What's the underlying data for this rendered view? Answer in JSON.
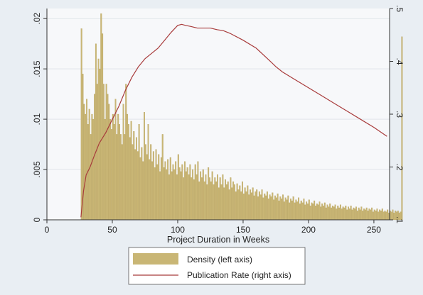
{
  "chart_data": {
    "type": "bar",
    "title": "",
    "xlabel": "Project Duration in Weeks",
    "ylabel_left": "",
    "ylabel_right": "",
    "xlim": [
      0,
      262
    ],
    "ylim_left": [
      0,
      0.021
    ],
    "ylim_right": [
      0.1,
      0.5
    ],
    "x_ticks": [
      "0",
      "50",
      "100",
      "150",
      "200",
      "250"
    ],
    "y_left_ticks": [
      "0",
      ".005",
      ".01",
      ".015",
      ".02"
    ],
    "y_right_ticks": [
      ".1",
      ".2",
      ".3",
      ".4",
      ".5"
    ],
    "grid": true,
    "legend_position": "bottom",
    "colors": {
      "background": "#e9eef3",
      "bars": "#c9b675",
      "bar_edge": "#b19b55",
      "line": "#a83b3b",
      "plot_area": "#f7f8fa"
    },
    "series": [
      {
        "name": "Density (left axis)",
        "type": "bar",
        "axis": "left",
        "x_start": 26,
        "bin_width": 1,
        "values": [
          0.019,
          0.0145,
          0.0115,
          0.0105,
          0.012,
          0.0095,
          0.011,
          0.0085,
          0.0105,
          0.01,
          0.0125,
          0.0175,
          0.0135,
          0.016,
          0.015,
          0.0205,
          0.0185,
          0.0135,
          0.01,
          0.0135,
          0.0125,
          0.0115,
          0.01,
          0.009,
          0.0105,
          0.0095,
          0.012,
          0.0085,
          0.0105,
          0.0095,
          0.0085,
          0.0075,
          0.0115,
          0.0085,
          0.0135,
          0.0105,
          0.0095,
          0.0082,
          0.0098,
          0.0075,
          0.0088,
          0.007,
          0.0082,
          0.0068,
          0.0095,
          0.0062,
          0.0072,
          0.0058,
          0.0107,
          0.0075,
          0.0065,
          0.0095,
          0.006,
          0.0075,
          0.0058,
          0.0068,
          0.0052,
          0.007,
          0.0055,
          0.0065,
          0.0048,
          0.0062,
          0.0085,
          0.0052,
          0.0058,
          0.005,
          0.006,
          0.0045,
          0.0062,
          0.0048,
          0.0055,
          0.005,
          0.0058,
          0.0045,
          0.0065,
          0.0052,
          0.0048,
          0.0055,
          0.0042,
          0.0058,
          0.0048,
          0.0052,
          0.0045,
          0.0055,
          0.0042,
          0.005,
          0.004,
          0.0055,
          0.0045,
          0.0058,
          0.0038,
          0.0048,
          0.0042,
          0.005,
          0.0038,
          0.0045,
          0.0035,
          0.0052,
          0.0042,
          0.0038,
          0.0048,
          0.0035,
          0.0042,
          0.0038,
          0.0045,
          0.0032,
          0.0042,
          0.0035,
          0.0045,
          0.0032,
          0.004,
          0.0035,
          0.0038,
          0.003,
          0.0042,
          0.0032,
          0.0038,
          0.0035,
          0.0028,
          0.0036,
          0.003,
          0.0034,
          0.0028,
          0.0038,
          0.0026,
          0.0032,
          0.0028,
          0.0034,
          0.0025,
          0.003,
          0.0027,
          0.0032,
          0.0024,
          0.0028,
          0.003,
          0.0023,
          0.0028,
          0.0025,
          0.003,
          0.0022,
          0.0026,
          0.0024,
          0.0028,
          0.0021,
          0.0025,
          0.0023,
          0.0027,
          0.002,
          0.0024,
          0.0022,
          0.0026,
          0.0019,
          0.0023,
          0.0021,
          0.0025,
          0.0018,
          0.0022,
          0.002,
          0.0024,
          0.0017,
          0.0021,
          0.0019,
          0.0023,
          0.0017,
          0.002,
          0.0018,
          0.0022,
          0.0016,
          0.0019,
          0.0017,
          0.0021,
          0.0015,
          0.0018,
          0.0016,
          0.002,
          0.0014,
          0.0017,
          0.0016,
          0.0019,
          0.0014,
          0.0016,
          0.0015,
          0.0018,
          0.0013,
          0.0016,
          0.0014,
          0.0017,
          0.0012,
          0.0015,
          0.0013,
          0.0016,
          0.0012,
          0.0014,
          0.0013,
          0.0015,
          0.0011,
          0.0014,
          0.0012,
          0.0015,
          0.0011,
          0.0013,
          0.0012,
          0.0014,
          0.001,
          0.0013,
          0.0011,
          0.0014,
          0.001,
          0.0012,
          0.0011,
          0.0013,
          0.0009,
          0.0012,
          0.001,
          0.0013,
          0.0009,
          0.0011,
          0.001,
          0.0012,
          0.0009,
          0.0011,
          0.001,
          0.0012,
          0.0008,
          0.001,
          0.0009,
          0.0011,
          0.0008,
          0.001,
          0.0009,
          0.0011,
          0.0008,
          0.0009,
          0.0008,
          0.001,
          0.0007,
          0.0009,
          0.0008,
          0.001,
          0.0007,
          0.0009,
          0.0008,
          0.0009,
          0.0007,
          0.0008,
          0.0182
        ]
      },
      {
        "name": "Publication Rate (right axis)",
        "type": "line",
        "axis": "right",
        "x": [
          26,
          27,
          28,
          30,
          33,
          36,
          40,
          45,
          50,
          55,
          60,
          65,
          70,
          75,
          80,
          85,
          90,
          95,
          100,
          103,
          106,
          110,
          115,
          120,
          125,
          130,
          135,
          140,
          150,
          160,
          170,
          175,
          180,
          190,
          200,
          210,
          220,
          230,
          240,
          250,
          260
        ],
        "y": [
          0.105,
          0.13,
          0.155,
          0.185,
          0.2,
          0.22,
          0.245,
          0.265,
          0.29,
          0.315,
          0.345,
          0.37,
          0.39,
          0.405,
          0.415,
          0.425,
          0.44,
          0.455,
          0.468,
          0.47,
          0.468,
          0.466,
          0.463,
          0.463,
          0.463,
          0.46,
          0.458,
          0.453,
          0.44,
          0.425,
          0.402,
          0.39,
          0.38,
          0.365,
          0.35,
          0.335,
          0.32,
          0.305,
          0.29,
          0.275,
          0.258
        ]
      }
    ]
  }
}
